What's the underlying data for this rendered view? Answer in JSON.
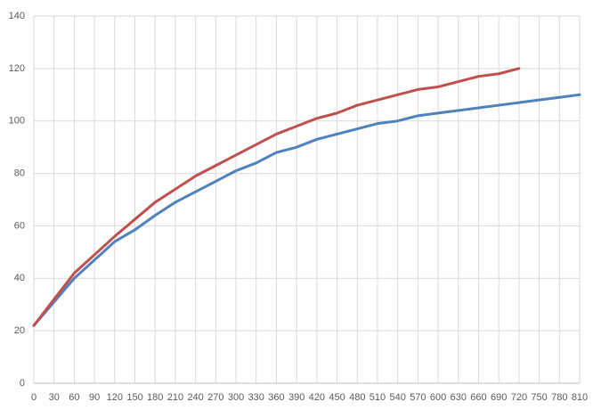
{
  "chart_data": {
    "type": "line",
    "x": [
      0,
      30,
      60,
      90,
      120,
      150,
      180,
      210,
      240,
      270,
      300,
      330,
      360,
      390,
      420,
      450,
      480,
      510,
      540,
      570,
      600,
      630,
      660,
      690,
      720,
      750,
      780,
      810
    ],
    "series": [
      {
        "color": "#4f81bd",
        "values": [
          22,
          31,
          40,
          47,
          54,
          58.5,
          64,
          69,
          73,
          77,
          81,
          84,
          88,
          90,
          93,
          95,
          97,
          99,
          100,
          102,
          103,
          104,
          105,
          106,
          107,
          108,
          109,
          110
        ]
      },
      {
        "color": "#c0504d",
        "values": [
          22,
          32,
          42,
          49,
          56,
          62.5,
          69,
          74,
          79,
          83,
          87,
          91,
          95,
          98,
          101,
          103,
          106,
          108,
          110,
          112,
          113,
          115,
          117,
          118,
          120,
          null,
          null,
          null
        ]
      }
    ],
    "xlim": [
      0,
      810
    ],
    "xticks": [
      0,
      30,
      60,
      90,
      120,
      150,
      180,
      210,
      240,
      270,
      300,
      330,
      360,
      390,
      420,
      450,
      480,
      510,
      540,
      570,
      600,
      630,
      660,
      690,
      720,
      750,
      780,
      810
    ],
    "ylim": [
      0,
      140
    ],
    "yticks": [
      0,
      20,
      40,
      60,
      80,
      100,
      120,
      140
    ],
    "grid": true
  }
}
